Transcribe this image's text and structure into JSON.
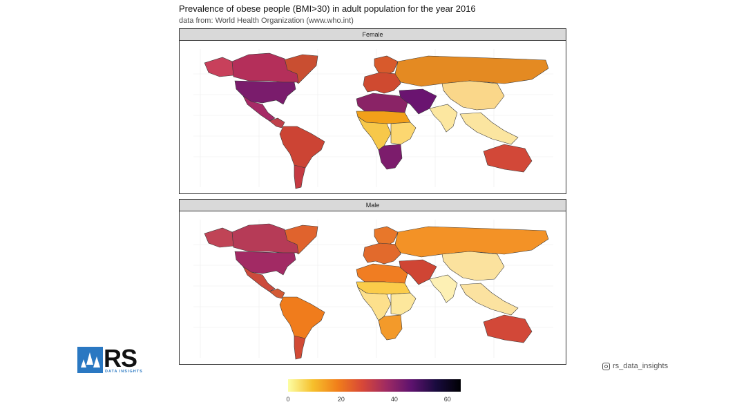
{
  "header": {
    "title": "Prevalence of obese people (BMI>30) in adult population for the year 2016",
    "subtitle": "data from: World Health Organization (www.who.int)"
  },
  "panels": [
    {
      "label": "Female"
    },
    {
      "label": "Male"
    }
  ],
  "legend": {
    "ticks": [
      "0",
      "20",
      "40",
      "60"
    ],
    "tick_values": [
      0,
      20,
      40,
      60
    ],
    "range": [
      0,
      65
    ],
    "palette": [
      "#fcfea4",
      "#f6c02c",
      "#f17f1a",
      "#d84837",
      "#9e2a63",
      "#5d126e",
      "#190b3e",
      "#000004"
    ]
  },
  "branding": {
    "logo_letters": "RS",
    "logo_tagline": "DATA INSIGHTS",
    "social_handle": "rs_data_insights",
    "social_icon": "instagram-icon"
  },
  "colors": {
    "female": {
      "na": "#b42f5a",
      "ak": "#c8405b",
      "us": "#7a1c6c",
      "mx": "#a62a66",
      "ca_am": "#c0404a",
      "sa": "#cc4434",
      "sa_south": "#c53a42",
      "eu": "#cf4a30",
      "eu_north": "#d85a2c",
      "ru": "#e48a22",
      "n_af": "#8a2366",
      "sahel": "#f2a019",
      "w_af": "#f7c84a",
      "e_af": "#fcd770",
      "s_af": "#7c1c6c",
      "mideast": "#6a1470",
      "cn": "#fad78a",
      "in": "#fce7a0",
      "se_as": "#fbe5a0",
      "au": "#d24838",
      "gl": "#c94e31"
    },
    "male": {
      "na": "#b63b57",
      "ak": "#c04456",
      "us": "#a22a64",
      "mx": "#cc4a3c",
      "ca_am": "#d35a35",
      "sa": "#f07c1c",
      "sa_south": "#d14a35",
      "eu": "#e26a2c",
      "eu_north": "#e8772a",
      "ru": "#f39226",
      "n_af": "#f07d22",
      "sahel": "#fbcc4a",
      "w_af": "#fde08c",
      "e_af": "#fde79c",
      "s_af": "#f39a2a",
      "mideast": "#cf4534",
      "cn": "#fbe29e",
      "in": "#fdf0b4",
      "se_as": "#fbe2a0",
      "au": "#d24838",
      "gl": "#e0632d"
    }
  }
}
